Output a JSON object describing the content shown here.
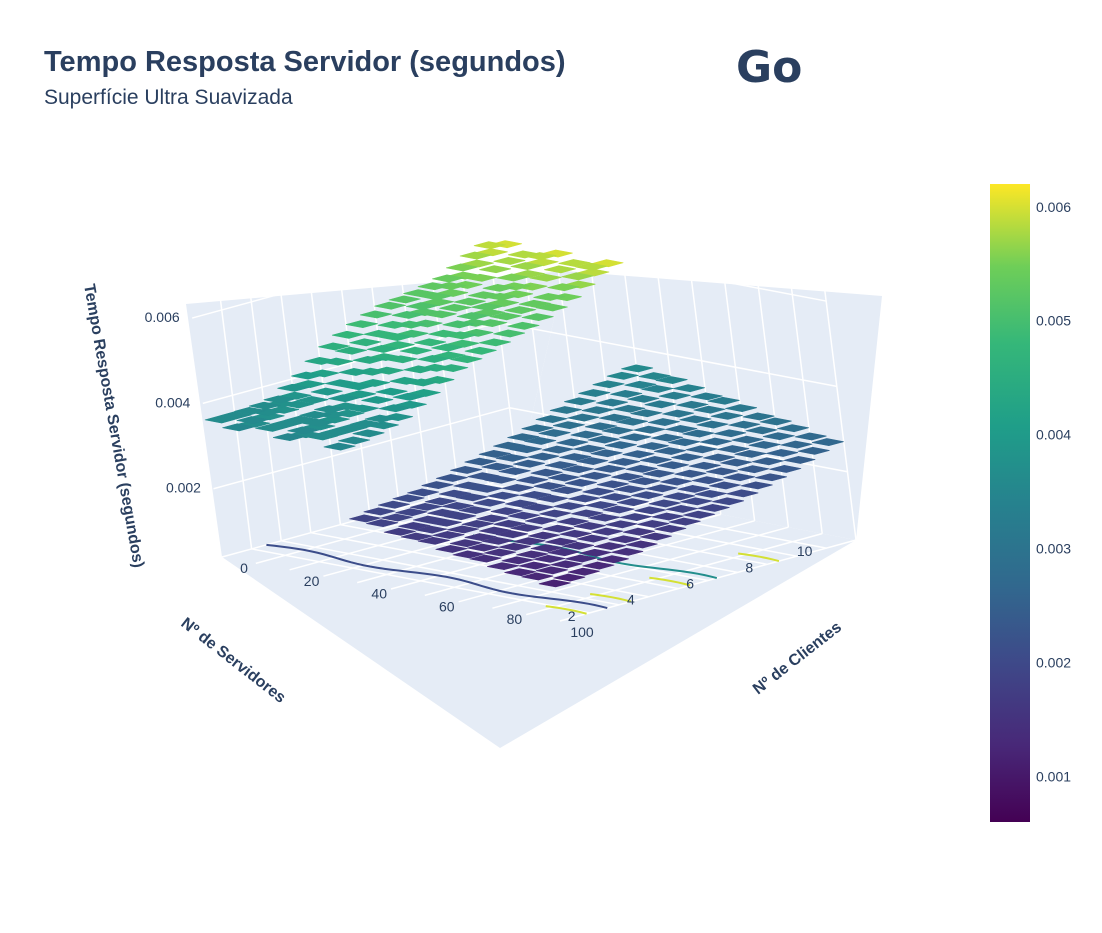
{
  "header": {
    "title": "Tempo Resposta Servidor (segundos)",
    "subtitle": "Superfície Ultra Suavizada",
    "language_label": "Go"
  },
  "chart_data": {
    "type": "surface",
    "title": "Tempo Resposta Servidor (segundos)",
    "subtitle": "Superfície Ultra Suavizada",
    "x_axis": {
      "label": "Nº de Clientes",
      "ticks": [
        "0",
        "20",
        "40",
        "60",
        "80",
        "100"
      ],
      "range": [
        0,
        100
      ]
    },
    "y_axis": {
      "label": "Nº de Servidores",
      "ticks": [
        "2",
        "4",
        "6",
        "8",
        "10"
      ],
      "range": [
        1,
        11
      ]
    },
    "z_axis": {
      "label": "Tempo Resposta Servidor (segundos)",
      "ticks": [
        "0.002",
        "0.004",
        "0.006"
      ],
      "range": [
        0.0004,
        0.0064
      ]
    },
    "colorscale": "Viridis",
    "colorbar": {
      "ticks": [
        "0.001",
        "0.002",
        "0.003",
        "0.004",
        "0.005",
        "0.006"
      ],
      "range": [
        0.0006,
        0.0062
      ]
    },
    "surface_profile": {
      "servers": [
        1,
        2,
        3,
        4,
        5,
        6,
        7,
        8,
        9,
        10,
        11
      ],
      "z_top": [
        0.0036,
        0.0037,
        0.0038,
        0.0041,
        0.0045,
        0.0048,
        0.0051,
        0.0053,
        0.0055,
        0.0058,
        0.006
      ],
      "z_bottom": [
        0.0006,
        0.0007,
        0.0008,
        0.0009,
        0.001,
        0.0011,
        0.0012,
        0.0014,
        0.0016,
        0.0018,
        0.002
      ]
    },
    "grid": true,
    "colors": {
      "background": "#ffffff",
      "scene_bg": "#e5ecf6",
      "text": "#2a3f5f"
    }
  }
}
